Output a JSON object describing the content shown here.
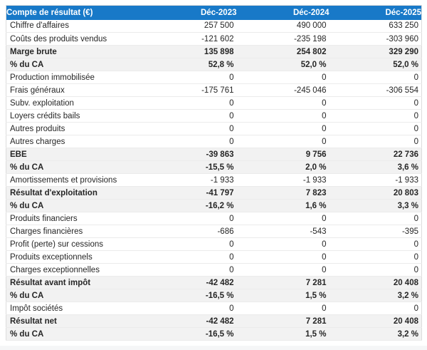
{
  "colors": {
    "header_bg": "#1879c8",
    "header_text": "#ffffff",
    "body_text": "#262626",
    "highlight_bg": "#f2f2f2",
    "row_border": "#ebebeb",
    "table_border": "#dcdcdc",
    "page_bg": "#ffffff",
    "bottom_strip": "#f5f6f7"
  },
  "table": {
    "header": {
      "label": "Compte de résultat (€)",
      "columns": [
        "Déc-2023",
        "Déc-2024",
        "Déc-2025"
      ]
    },
    "rows": [
      {
        "label": "Chiffre d'affaires",
        "values": [
          "257 500",
          "490 000",
          "633 250"
        ],
        "emphasis": false
      },
      {
        "label": "Coûts des produits vendus",
        "values": [
          "-121 602",
          "-235 198",
          "-303 960"
        ],
        "emphasis": false
      },
      {
        "label": "Marge brute",
        "values": [
          "135 898",
          "254 802",
          "329 290"
        ],
        "emphasis": true
      },
      {
        "label": "% du CA",
        "values": [
          "52,8 %",
          "52,0 %",
          "52,0 %"
        ],
        "emphasis": true
      },
      {
        "label": "Production immobilisée",
        "values": [
          "0",
          "0",
          "0"
        ],
        "emphasis": false
      },
      {
        "label": "Frais généraux",
        "values": [
          "-175 761",
          "-245 046",
          "-306 554"
        ],
        "emphasis": false
      },
      {
        "label": "Subv. exploitation",
        "values": [
          "0",
          "0",
          "0"
        ],
        "emphasis": false
      },
      {
        "label": "Loyers crédits bails",
        "values": [
          "0",
          "0",
          "0"
        ],
        "emphasis": false
      },
      {
        "label": "Autres produits",
        "values": [
          "0",
          "0",
          "0"
        ],
        "emphasis": false
      },
      {
        "label": "Autres charges",
        "values": [
          "0",
          "0",
          "0"
        ],
        "emphasis": false
      },
      {
        "label": "EBE",
        "values": [
          "-39 863",
          "9 756",
          "22 736"
        ],
        "emphasis": true
      },
      {
        "label": "% du CA",
        "values": [
          "-15,5 %",
          "2,0 %",
          "3,6 %"
        ],
        "emphasis": true
      },
      {
        "label": "Amortissements et provisions",
        "values": [
          "-1 933",
          "-1 933",
          "-1 933"
        ],
        "emphasis": false
      },
      {
        "label": "Résultat d'exploitation",
        "values": [
          "-41 797",
          "7 823",
          "20 803"
        ],
        "emphasis": true
      },
      {
        "label": "% du CA",
        "values": [
          "-16,2 %",
          "1,6 %",
          "3,3 %"
        ],
        "emphasis": true
      },
      {
        "label": "Produits financiers",
        "values": [
          "0",
          "0",
          "0"
        ],
        "emphasis": false
      },
      {
        "label": "Charges financières",
        "values": [
          "-686",
          "-543",
          "-395"
        ],
        "emphasis": false
      },
      {
        "label": "Profit (perte) sur cessions",
        "values": [
          "0",
          "0",
          "0"
        ],
        "emphasis": false
      },
      {
        "label": "Produits exceptionnels",
        "values": [
          "0",
          "0",
          "0"
        ],
        "emphasis": false
      },
      {
        "label": "Charges exceptionnelles",
        "values": [
          "0",
          "0",
          "0"
        ],
        "emphasis": false
      },
      {
        "label": "Résultat avant impôt",
        "values": [
          "-42 482",
          "7 281",
          "20 408"
        ],
        "emphasis": true
      },
      {
        "label": "% du CA",
        "values": [
          "-16,5 %",
          "1,5 %",
          "3,2 %"
        ],
        "emphasis": true
      },
      {
        "label": "Impôt sociétés",
        "values": [
          "0",
          "0",
          "0"
        ],
        "emphasis": false
      },
      {
        "label": "Résultat net",
        "values": [
          "-42 482",
          "7 281",
          "20 408"
        ],
        "emphasis": true
      },
      {
        "label": "% du CA",
        "values": [
          "-16,5 %",
          "1,5 %",
          "3,2 %"
        ],
        "emphasis": true
      }
    ]
  }
}
